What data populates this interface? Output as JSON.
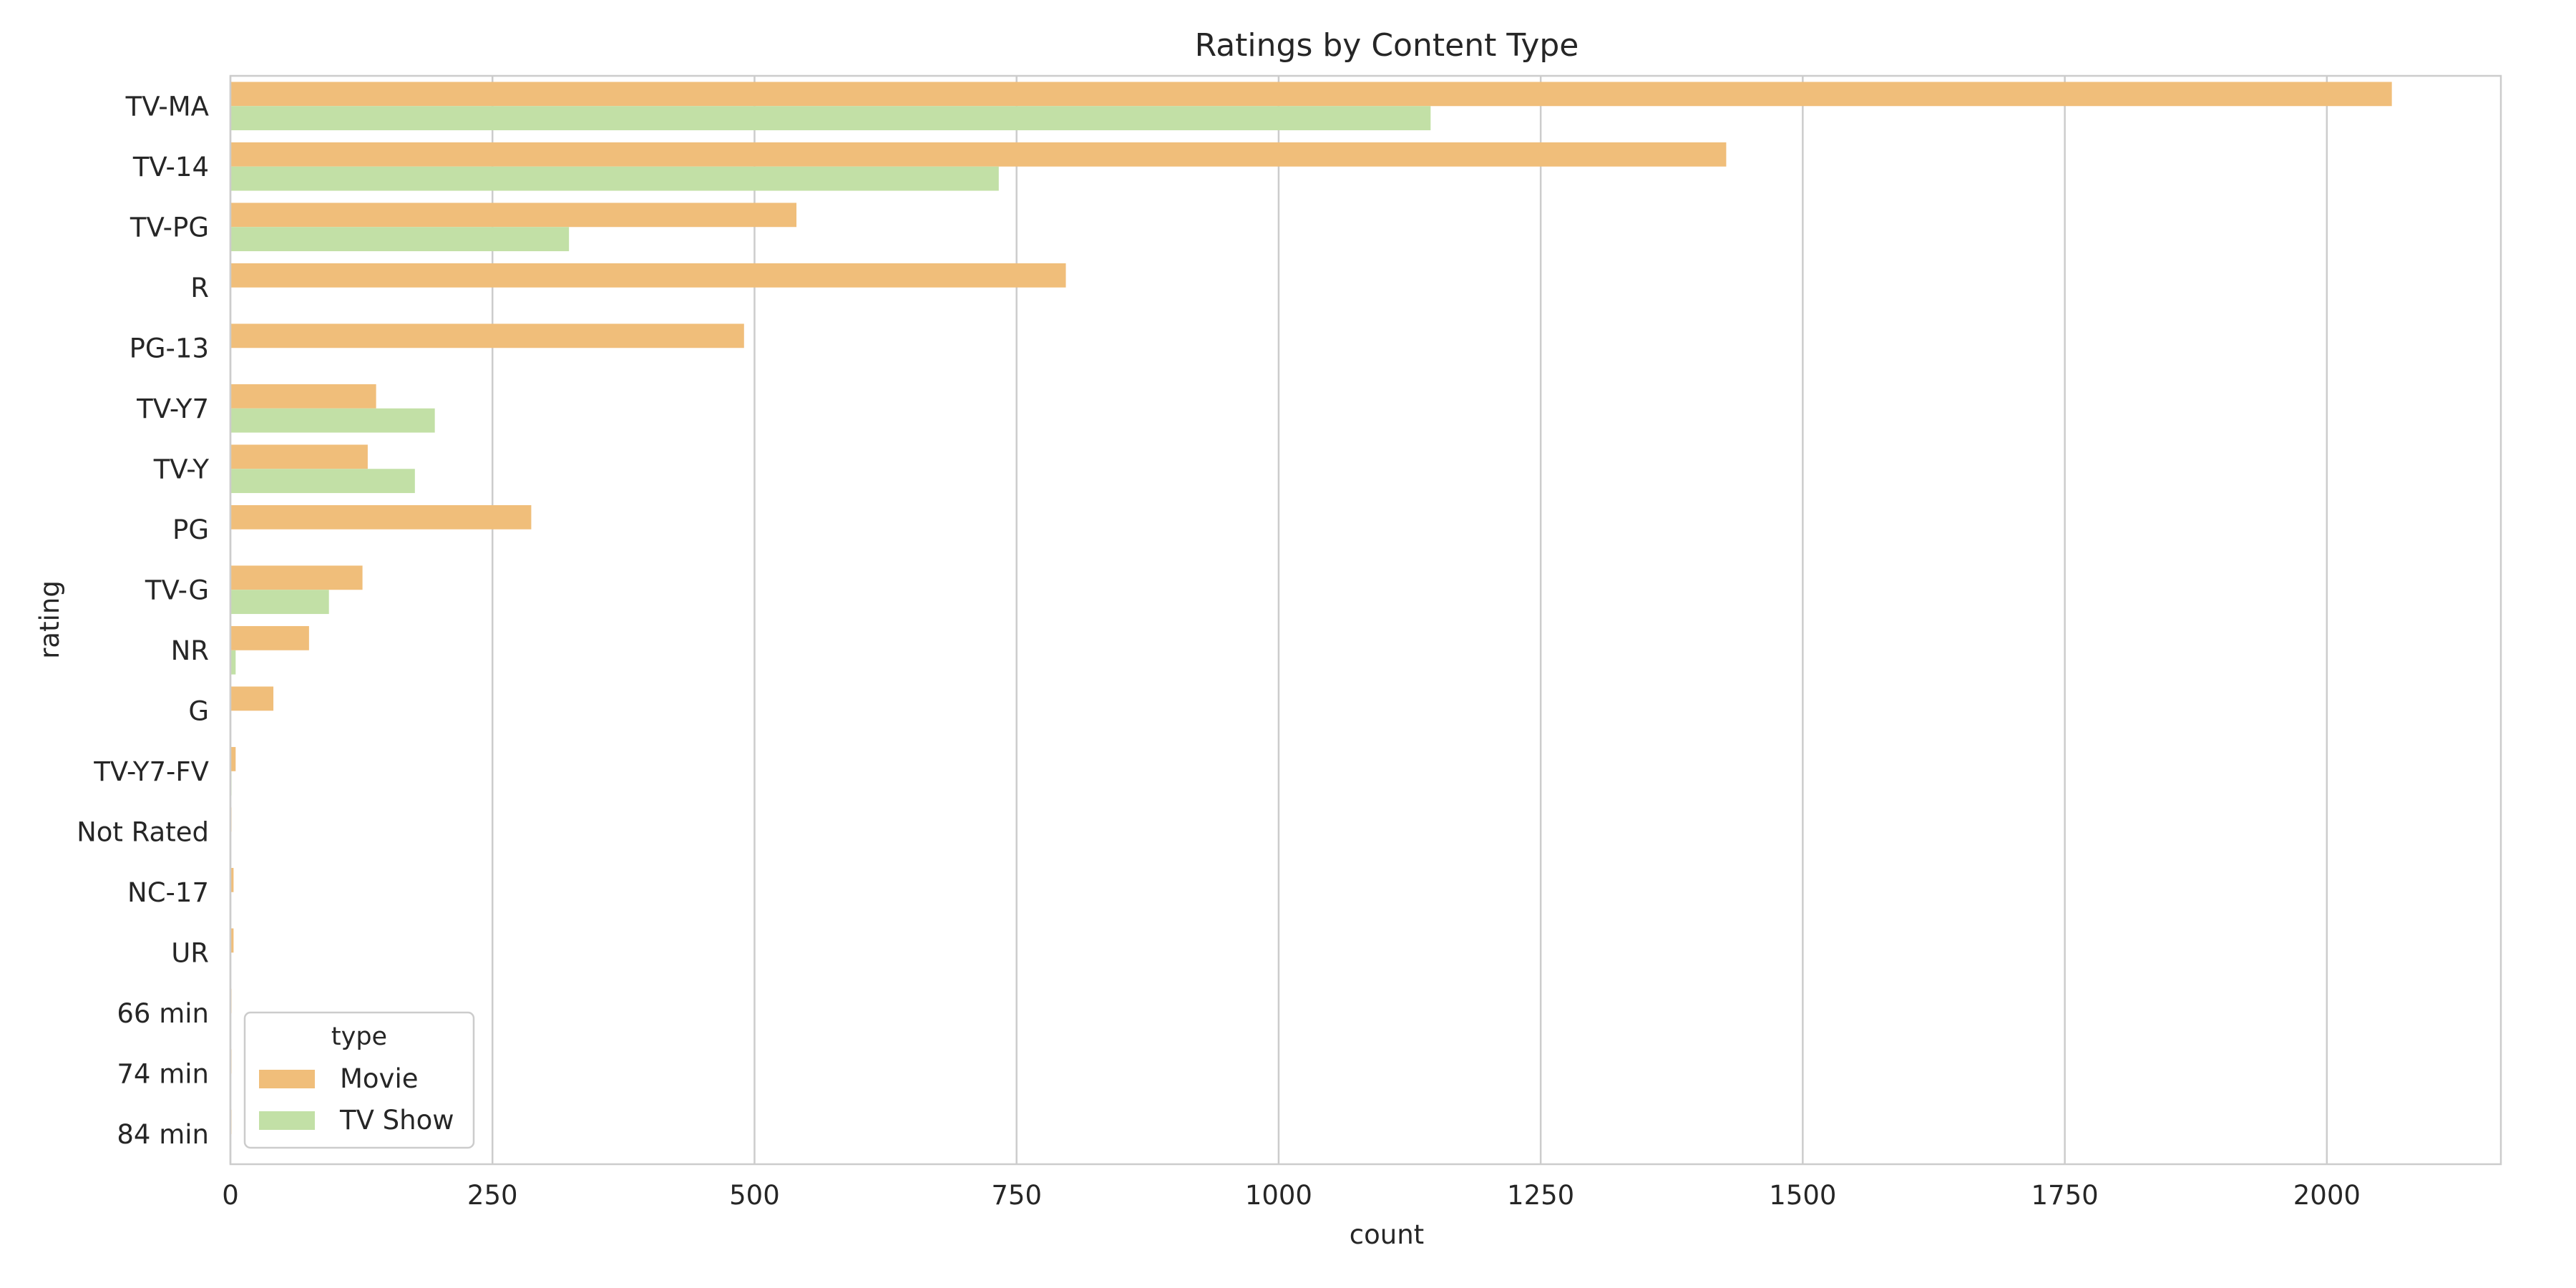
{
  "chart_data": {
    "type": "bar",
    "orientation": "horizontal",
    "title": "Ratings by Content Type",
    "xlabel": "count",
    "ylabel": "rating",
    "categories": [
      "TV-MA",
      "TV-14",
      "TV-PG",
      "R",
      "PG-13",
      "TV-Y7",
      "TV-Y",
      "PG",
      "TV-G",
      "NR",
      "G",
      "TV-Y7-FV",
      "Not Rated",
      "NC-17",
      "UR",
      "66 min",
      "74 min",
      "84 min"
    ],
    "series": [
      {
        "name": "Movie",
        "color": "#f0be7a",
        "values": [
          2062,
          1427,
          540,
          797,
          490,
          139,
          131,
          287,
          126,
          75,
          41,
          5,
          1,
          3,
          3,
          1,
          1,
          1
        ]
      },
      {
        "name": "TV Show",
        "color": "#c2e0a6",
        "values": [
          1145,
          733,
          323,
          0,
          0,
          195,
          176,
          0,
          94,
          5,
          0,
          1,
          0,
          0,
          0,
          0,
          0,
          0
        ]
      }
    ],
    "xlim": [
      0,
      2166
    ],
    "xticks": [
      0,
      250,
      500,
      750,
      1000,
      1250,
      1500,
      1750,
      2000
    ],
    "grid": "vertical",
    "legend": {
      "title": "type",
      "placement": "lower-left"
    }
  }
}
